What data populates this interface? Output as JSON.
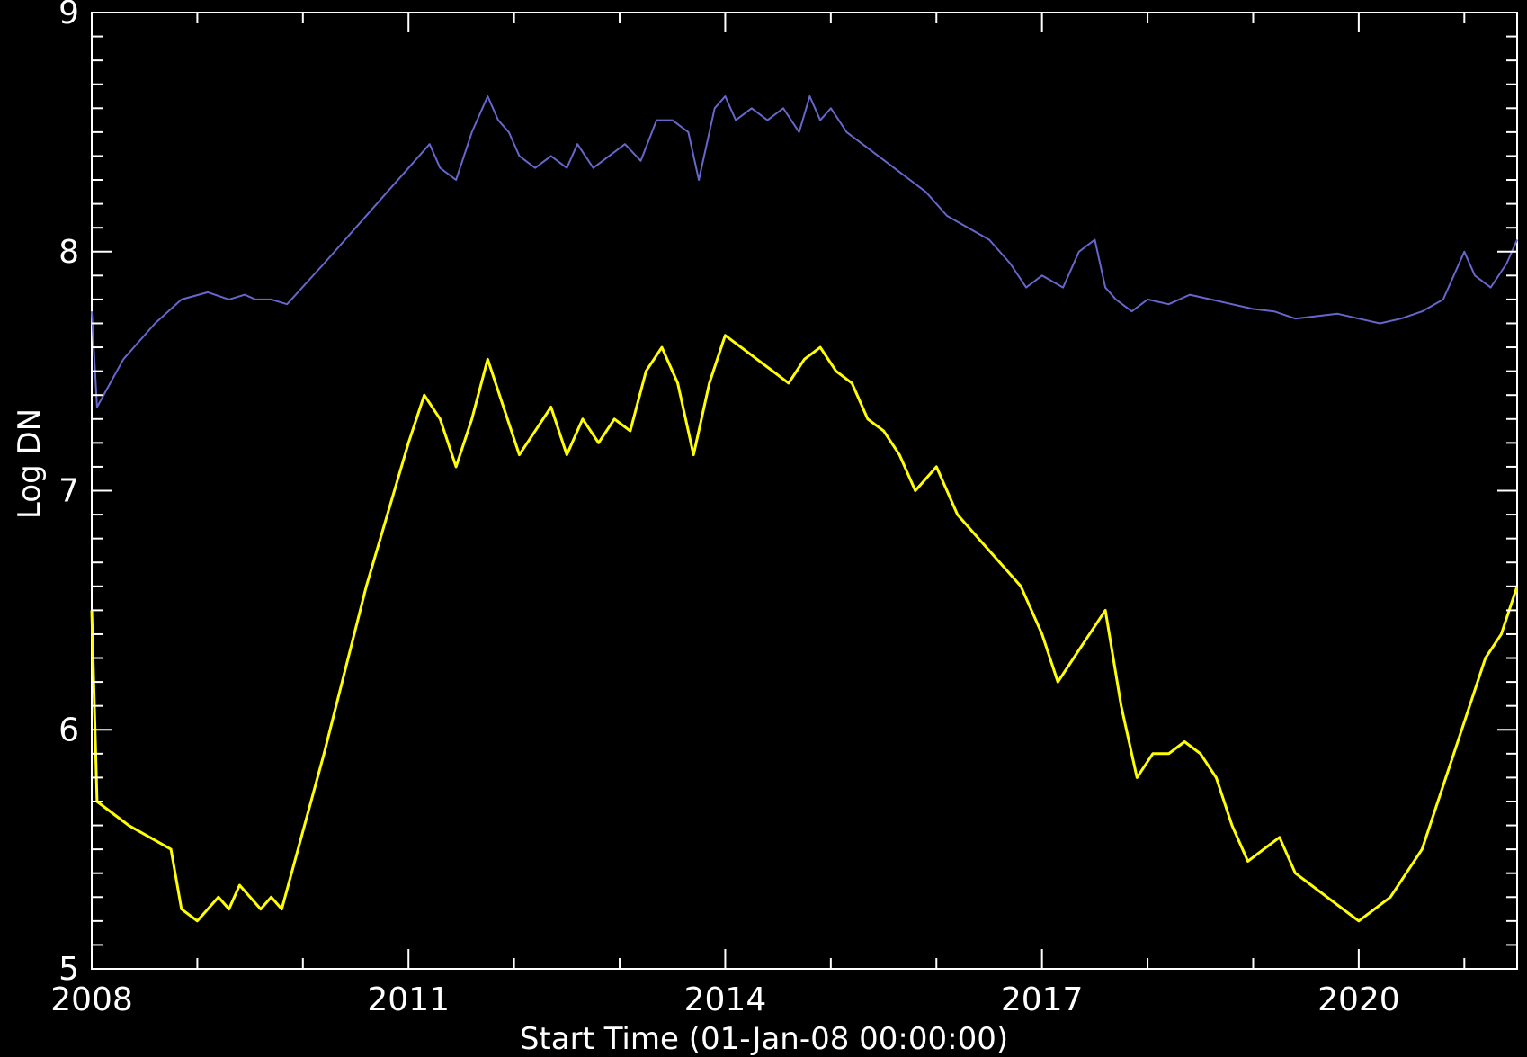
{
  "chart_data": {
    "type": "line",
    "title": "",
    "xlabel": "Start Time (01-Jan-08 00:00:00)",
    "ylabel": "Log DN",
    "xlim": [
      2008.0,
      2021.5
    ],
    "ylim": [
      5,
      9
    ],
    "x_ticks": [
      {
        "value": 2008,
        "label": "2008"
      },
      {
        "value": 2011,
        "label": "2011"
      },
      {
        "value": 2014,
        "label": "2014"
      },
      {
        "value": 2017,
        "label": "2017"
      },
      {
        "value": 2020,
        "label": "2020"
      }
    ],
    "y_ticks": [
      {
        "value": 5,
        "label": "5"
      },
      {
        "value": 6,
        "label": "6"
      },
      {
        "value": 7,
        "label": "7"
      },
      {
        "value": 8,
        "label": "8"
      },
      {
        "value": 9,
        "label": "9"
      }
    ],
    "grid": false,
    "background": "#000000",
    "axis_color": "#ffffff",
    "series": [
      {
        "color": "#6666cc",
        "x": [
          2008.0,
          2008.05,
          2008.3,
          2008.6,
          2008.85,
          2009.1,
          2009.3,
          2009.45,
          2009.55,
          2009.7,
          2009.85,
          2010.2,
          2010.5,
          2010.8,
          2011.1,
          2011.2,
          2011.3,
          2011.45,
          2011.6,
          2011.75,
          2011.85,
          2011.95,
          2012.05,
          2012.2,
          2012.35,
          2012.5,
          2012.6,
          2012.75,
          2012.9,
          2013.05,
          2013.2,
          2013.35,
          2013.5,
          2013.65,
          2013.75,
          2013.9,
          2014.0,
          2014.1,
          2014.25,
          2014.4,
          2014.55,
          2014.7,
          2014.8,
          2014.9,
          2015.0,
          2015.15,
          2015.3,
          2015.45,
          2015.6,
          2015.75,
          2015.9,
          2016.1,
          2016.3,
          2016.5,
          2016.7,
          2016.85,
          2017.0,
          2017.2,
          2017.35,
          2017.5,
          2017.6,
          2017.7,
          2017.85,
          2018.0,
          2018.2,
          2018.4,
          2018.6,
          2018.8,
          2019.0,
          2019.2,
          2019.4,
          2019.6,
          2019.8,
          2020.0,
          2020.2,
          2020.4,
          2020.6,
          2020.8,
          2021.0,
          2021.1,
          2021.25,
          2021.4,
          2021.5
        ],
        "y": [
          7.75,
          7.35,
          7.55,
          7.7,
          7.8,
          7.83,
          7.8,
          7.82,
          7.8,
          7.8,
          7.78,
          7.95,
          8.1,
          8.25,
          8.4,
          8.45,
          8.35,
          8.3,
          8.5,
          8.65,
          8.55,
          8.5,
          8.4,
          8.35,
          8.4,
          8.35,
          8.45,
          8.35,
          8.4,
          8.45,
          8.38,
          8.55,
          8.55,
          8.5,
          8.3,
          8.6,
          8.65,
          8.55,
          8.6,
          8.55,
          8.6,
          8.5,
          8.65,
          8.55,
          8.6,
          8.5,
          8.45,
          8.4,
          8.35,
          8.3,
          8.25,
          8.15,
          8.1,
          8.05,
          7.95,
          7.85,
          7.9,
          7.85,
          8.0,
          8.05,
          7.85,
          7.8,
          7.75,
          7.8,
          7.78,
          7.82,
          7.8,
          7.78,
          7.76,
          7.75,
          7.72,
          7.73,
          7.74,
          7.72,
          7.7,
          7.72,
          7.75,
          7.8,
          8.0,
          7.9,
          7.85,
          7.95,
          8.05
        ]
      },
      {
        "color": "#ffff00",
        "x": [
          2008.0,
          2008.05,
          2008.35,
          2008.55,
          2008.75,
          2008.85,
          2009.0,
          2009.1,
          2009.2,
          2009.3,
          2009.4,
          2009.5,
          2009.6,
          2009.7,
          2009.8,
          2010.2,
          2010.6,
          2011.0,
          2011.15,
          2011.3,
          2011.45,
          2011.6,
          2011.75,
          2011.9,
          2012.05,
          2012.2,
          2012.35,
          2012.5,
          2012.65,
          2012.8,
          2012.95,
          2013.1,
          2013.25,
          2013.4,
          2013.55,
          2013.7,
          2013.85,
          2014.0,
          2014.15,
          2014.3,
          2014.45,
          2014.6,
          2014.75,
          2014.9,
          2015.05,
          2015.2,
          2015.35,
          2015.5,
          2015.65,
          2015.8,
          2016.0,
          2016.2,
          2016.4,
          2016.6,
          2016.8,
          2017.0,
          2017.15,
          2017.3,
          2017.45,
          2017.6,
          2017.75,
          2017.9,
          2018.05,
          2018.2,
          2018.35,
          2018.5,
          2018.65,
          2018.8,
          2018.95,
          2019.1,
          2019.25,
          2019.4,
          2019.55,
          2019.7,
          2019.85,
          2020.0,
          2020.15,
          2020.3,
          2020.45,
          2020.6,
          2020.75,
          2020.9,
          2021.05,
          2021.2,
          2021.35,
          2021.5
        ],
        "y": [
          6.5,
          5.7,
          5.6,
          5.55,
          5.5,
          5.25,
          5.2,
          5.25,
          5.3,
          5.25,
          5.35,
          5.3,
          5.25,
          5.3,
          5.25,
          5.9,
          6.6,
          7.2,
          7.4,
          7.3,
          7.1,
          7.3,
          7.55,
          7.35,
          7.15,
          7.25,
          7.35,
          7.15,
          7.3,
          7.2,
          7.3,
          7.25,
          7.5,
          7.6,
          7.45,
          7.15,
          7.45,
          7.65,
          7.6,
          7.55,
          7.5,
          7.45,
          7.55,
          7.6,
          7.5,
          7.45,
          7.3,
          7.25,
          7.15,
          7.0,
          7.1,
          6.9,
          6.8,
          6.7,
          6.6,
          6.4,
          6.2,
          6.3,
          6.4,
          6.5,
          6.1,
          5.8,
          5.9,
          5.9,
          5.95,
          5.9,
          5.8,
          5.6,
          5.45,
          5.5,
          5.55,
          5.4,
          5.35,
          5.3,
          5.25,
          5.2,
          5.25,
          5.3,
          5.4,
          5.5,
          5.7,
          5.9,
          6.1,
          6.3,
          6.4,
          6.6
        ]
      }
    ]
  }
}
